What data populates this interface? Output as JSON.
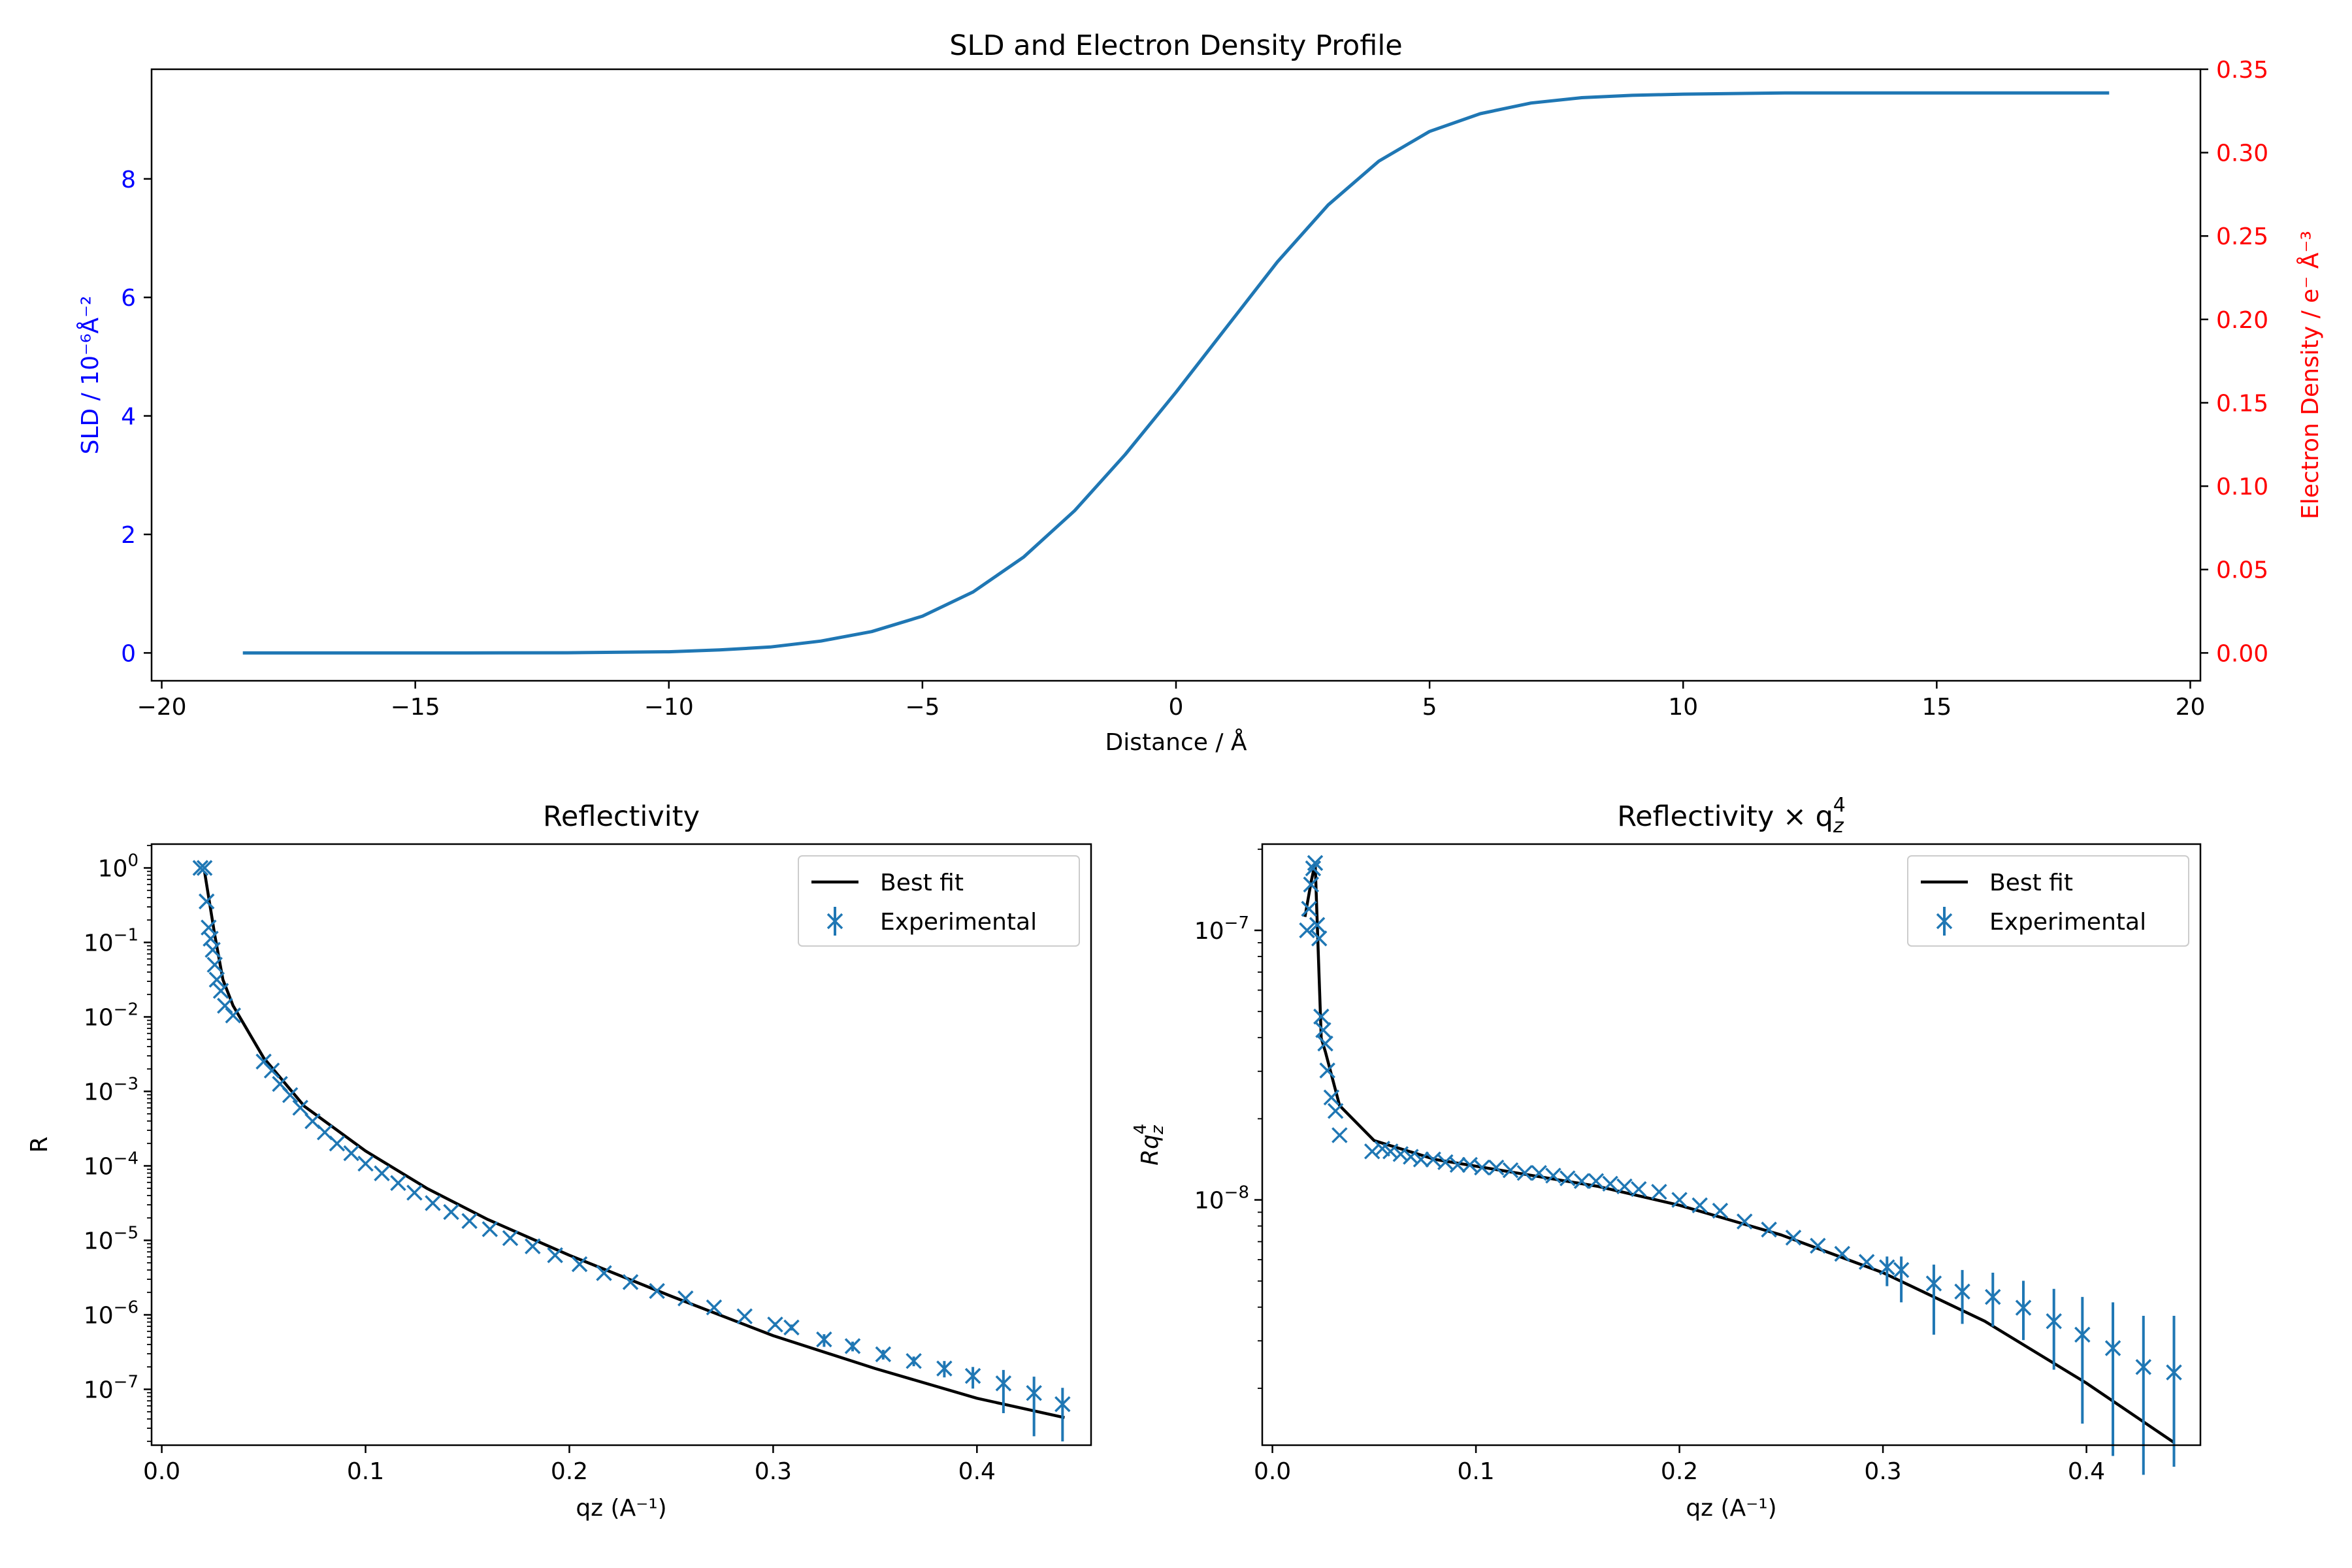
{
  "chart_data": [
    {
      "type": "line",
      "title": "SLD and Electron Density Profile",
      "xlabel": "Distance / Å",
      "ylabel": "SLD / 10⁻⁶Å⁻²",
      "ylabel_right": "Electron Density / e⁻ Å⁻³",
      "xlim": [
        -20.2,
        20.2
      ],
      "ylim": [
        -0.47,
        9.85
      ],
      "ylim_right": [
        -0.0167,
        0.35
      ],
      "xticks": [
        -20,
        -15,
        -10,
        -5,
        0,
        5,
        10,
        15,
        20
      ],
      "xtick_labels": [
        "−20",
        "−15",
        "−10",
        "−5",
        "0",
        "5",
        "10",
        "15",
        "20"
      ],
      "yticks": [
        0,
        2,
        4,
        6,
        8
      ],
      "ytick_labels": [
        "0",
        "2",
        "4",
        "6",
        "8"
      ],
      "yticks_right": [
        0,
        0.05,
        0.1,
        0.15,
        0.2,
        0.25,
        0.3,
        0.35
      ],
      "ytick_labels_right": [
        "0.00",
        "0.05",
        "0.10",
        "0.15",
        "0.20",
        "0.25",
        "0.30",
        "0.35"
      ],
      "colors": {
        "line": "#1f77b4",
        "left_axis": "#0000ff",
        "right_axis": "#ff0000"
      },
      "series": [
        {
          "x": [
            -18.4,
            -16,
            -14,
            -12,
            -10,
            -9,
            -8,
            -7,
            -6,
            -5,
            -4,
            -3,
            -2,
            -1,
            0,
            1,
            2,
            3,
            4,
            5,
            6,
            7,
            8,
            9,
            10,
            12,
            14,
            16,
            18.4
          ],
          "y": [
            0.0,
            0.0,
            0.0,
            0.003,
            0.02,
            0.05,
            0.1,
            0.2,
            0.36,
            0.62,
            1.03,
            1.62,
            2.4,
            3.35,
            4.4,
            5.5,
            6.6,
            7.56,
            8.3,
            8.8,
            9.1,
            9.28,
            9.37,
            9.41,
            9.43,
            9.45,
            9.45,
            9.45,
            9.45
          ]
        }
      ]
    },
    {
      "type": "scatter",
      "title": "Reflectivity",
      "xlabel": "qz (A⁻¹)",
      "ylabel": "R",
      "yscale": "log",
      "xlim": [
        -0.005,
        0.456
      ],
      "ylim_log10": [
        -7.75,
        0.32
      ],
      "xticks": [
        0.0,
        0.1,
        0.2,
        0.3,
        0.4
      ],
      "xtick_labels": [
        "0.0",
        "0.1",
        "0.2",
        "0.3",
        "0.4"
      ],
      "yticks_log10": [
        0,
        -1,
        -2,
        -3,
        -4,
        -5,
        -6,
        -7
      ],
      "ytick_labels": [
        "10",
        "10",
        "10",
        "10",
        "10",
        "10",
        "10",
        "10"
      ],
      "ytick_exponents": [
        "0",
        "−1",
        "−2",
        "−3",
        "−4",
        "−5",
        "−6",
        "−7"
      ],
      "legend": {
        "position": "upper right",
        "entries": [
          "Best fit",
          "Experimental"
        ]
      },
      "colors": {
        "fit": "#000000",
        "data": "#1f77b4"
      },
      "fit": {
        "x": [
          0.021,
          0.026,
          0.03,
          0.035,
          0.05,
          0.07,
          0.1,
          0.13,
          0.16,
          0.2,
          0.25,
          0.3,
          0.35,
          0.4,
          0.443
        ],
        "log10_y": [
          -0.05,
          -0.9,
          -1.5,
          -1.85,
          -2.55,
          -3.2,
          -3.8,
          -4.3,
          -4.72,
          -5.2,
          -5.75,
          -6.28,
          -6.72,
          -7.12,
          -7.38
        ]
      },
      "data": {
        "x": [
          0.019,
          0.021,
          0.022,
          0.023,
          0.024,
          0.025,
          0.026,
          0.027,
          0.029,
          0.031,
          0.035,
          0.05,
          0.054,
          0.058,
          0.063,
          0.068,
          0.074,
          0.08,
          0.086,
          0.093,
          0.1,
          0.108,
          0.116,
          0.124,
          0.133,
          0.142,
          0.151,
          0.161,
          0.171,
          0.182,
          0.193,
          0.205,
          0.217,
          0.23,
          0.243,
          0.257,
          0.271,
          0.286,
          0.301,
          0.309,
          0.325,
          0.339,
          0.354,
          0.369,
          0.384,
          0.398,
          0.413,
          0.428,
          0.442
        ],
        "log10_y": [
          0.0,
          0.0,
          -0.45,
          -0.8,
          -0.95,
          -1.1,
          -1.3,
          -1.5,
          -1.65,
          -1.85,
          -1.98,
          -2.6,
          -2.72,
          -2.9,
          -3.05,
          -3.22,
          -3.4,
          -3.55,
          -3.7,
          -3.83,
          -3.97,
          -4.1,
          -4.23,
          -4.36,
          -4.5,
          -4.62,
          -4.74,
          -4.85,
          -4.97,
          -5.08,
          -5.2,
          -5.32,
          -5.44,
          -5.56,
          -5.68,
          -5.78,
          -5.9,
          -6.02,
          -6.13,
          -6.17,
          -6.33,
          -6.42,
          -6.53,
          -6.62,
          -6.72,
          -6.82,
          -6.92,
          -7.05,
          -7.2
        ],
        "log10_err_low": [
          0.0,
          0.0,
          0.0,
          0.0,
          0.0,
          0.0,
          0.0,
          0.0,
          0.0,
          0.0,
          0.0,
          0.0,
          0.0,
          0.0,
          0.0,
          0.0,
          0.0,
          0.0,
          0.0,
          0.0,
          0.0,
          0.0,
          0.0,
          0.0,
          0.0,
          0.0,
          0.0,
          0.0,
          0.0,
          0.0,
          0.0,
          0.0,
          0.0,
          0.0,
          0.0,
          0.0,
          0.0,
          0.0,
          0.03,
          0.04,
          0.1,
          0.07,
          0.07,
          0.07,
          0.12,
          0.17,
          0.4,
          0.58,
          0.5
        ],
        "log10_err_high": [
          0.0,
          0.0,
          0.0,
          0.0,
          0.0,
          0.0,
          0.0,
          0.0,
          0.0,
          0.0,
          0.0,
          0.0,
          0.0,
          0.0,
          0.0,
          0.0,
          0.0,
          0.0,
          0.0,
          0.0,
          0.0,
          0.0,
          0.0,
          0.0,
          0.0,
          0.0,
          0.0,
          0.0,
          0.0,
          0.0,
          0.0,
          0.0,
          0.0,
          0.0,
          0.0,
          0.0,
          0.0,
          0.0,
          0.03,
          0.04,
          0.07,
          0.06,
          0.06,
          0.06,
          0.1,
          0.12,
          0.18,
          0.22,
          0.22
        ]
      }
    },
    {
      "type": "scatter",
      "title": "Reflectivity × q",
      "title_sub": "z",
      "title_sup": "4",
      "xlabel": "qz (A⁻¹)",
      "ylabel": "Rq",
      "ylabel_sub": "z",
      "ylabel_sup": "4",
      "yscale": "log",
      "xlim": [
        -0.005,
        0.456
      ],
      "ylim_log10": [
        -8.91,
        -6.68
      ],
      "xticks": [
        0.0,
        0.1,
        0.2,
        0.3,
        0.4
      ],
      "xtick_labels": [
        "0.0",
        "0.1",
        "0.2",
        "0.3",
        "0.4"
      ],
      "yticks_log10": [
        -7,
        -8
      ],
      "ytick_labels": [
        "10",
        "10"
      ],
      "ytick_exponents": [
        "−7",
        "−8"
      ],
      "legend": {
        "position": "upper right",
        "entries": [
          "Best fit",
          "Experimental"
        ]
      },
      "colors": {
        "fit": "#000000",
        "data": "#1f77b4"
      },
      "fit": {
        "x": [
          0.016,
          0.019,
          0.021,
          0.024,
          0.026,
          0.033,
          0.05,
          0.08,
          0.12,
          0.16,
          0.2,
          0.25,
          0.3,
          0.35,
          0.4,
          0.443
        ],
        "log10_y": [
          -6.95,
          -6.82,
          -6.75,
          -7.4,
          -7.45,
          -7.65,
          -7.78,
          -7.85,
          -7.9,
          -7.95,
          -8.02,
          -8.13,
          -8.27,
          -8.45,
          -8.68,
          -8.9
        ]
      },
      "data": {
        "x": [
          0.017,
          0.018,
          0.019,
          0.02,
          0.021,
          0.022,
          0.023,
          0.024,
          0.025,
          0.026,
          0.027,
          0.029,
          0.031,
          0.033,
          0.049,
          0.054,
          0.058,
          0.063,
          0.068,
          0.073,
          0.079,
          0.085,
          0.091,
          0.097,
          0.103,
          0.11,
          0.117,
          0.124,
          0.131,
          0.138,
          0.145,
          0.152,
          0.159,
          0.166,
          0.173,
          0.18,
          0.19,
          0.2,
          0.21,
          0.22,
          0.232,
          0.244,
          0.256,
          0.268,
          0.28,
          0.292,
          0.302,
          0.309,
          0.325,
          0.339,
          0.354,
          0.369,
          0.384,
          0.398,
          0.413,
          0.428,
          0.443
        ],
        "log10_y": [
          -7.0,
          -6.92,
          -6.83,
          -6.77,
          -6.75,
          -6.98,
          -7.03,
          -7.32,
          -7.37,
          -7.42,
          -7.52,
          -7.62,
          -7.67,
          -7.76,
          -7.82,
          -7.81,
          -7.82,
          -7.83,
          -7.84,
          -7.85,
          -7.85,
          -7.86,
          -7.87,
          -7.87,
          -7.88,
          -7.88,
          -7.89,
          -7.9,
          -7.9,
          -7.91,
          -7.92,
          -7.93,
          -7.93,
          -7.94,
          -7.95,
          -7.96,
          -7.97,
          -8.0,
          -8.02,
          -8.04,
          -8.08,
          -8.11,
          -8.14,
          -8.17,
          -8.2,
          -8.23,
          -8.25,
          -8.26,
          -8.31,
          -8.34,
          -8.36,
          -8.4,
          -8.45,
          -8.5,
          -8.55,
          -8.62,
          -8.64
        ],
        "log10_err_low": [
          0.0,
          0.0,
          0.0,
          0.0,
          0.0,
          0.0,
          0.0,
          0.0,
          0.0,
          0.0,
          0.0,
          0.0,
          0.0,
          0.0,
          0.0,
          0.0,
          0.0,
          0.0,
          0.0,
          0.0,
          0.0,
          0.0,
          0.0,
          0.0,
          0.0,
          0.0,
          0.0,
          0.0,
          0.0,
          0.0,
          0.0,
          0.0,
          0.0,
          0.0,
          0.0,
          0.0,
          0.0,
          0.0,
          0.0,
          0.0,
          0.0,
          0.0,
          0.0,
          0.0,
          0.0,
          0.0,
          0.07,
          0.12,
          0.19,
          0.12,
          0.11,
          0.12,
          0.18,
          0.33,
          0.4,
          0.4,
          0.35
        ],
        "log10_err_high": [
          0.0,
          0.0,
          0.0,
          0.0,
          0.0,
          0.0,
          0.0,
          0.0,
          0.0,
          0.0,
          0.0,
          0.0,
          0.0,
          0.0,
          0.0,
          0.0,
          0.0,
          0.0,
          0.0,
          0.0,
          0.0,
          0.0,
          0.0,
          0.0,
          0.0,
          0.0,
          0.0,
          0.0,
          0.0,
          0.0,
          0.0,
          0.0,
          0.0,
          0.0,
          0.0,
          0.0,
          0.0,
          0.0,
          0.0,
          0.0,
          0.0,
          0.0,
          0.0,
          0.0,
          0.0,
          0.0,
          0.04,
          0.05,
          0.07,
          0.08,
          0.09,
          0.1,
          0.12,
          0.14,
          0.17,
          0.19,
          0.21
        ]
      }
    }
  ]
}
